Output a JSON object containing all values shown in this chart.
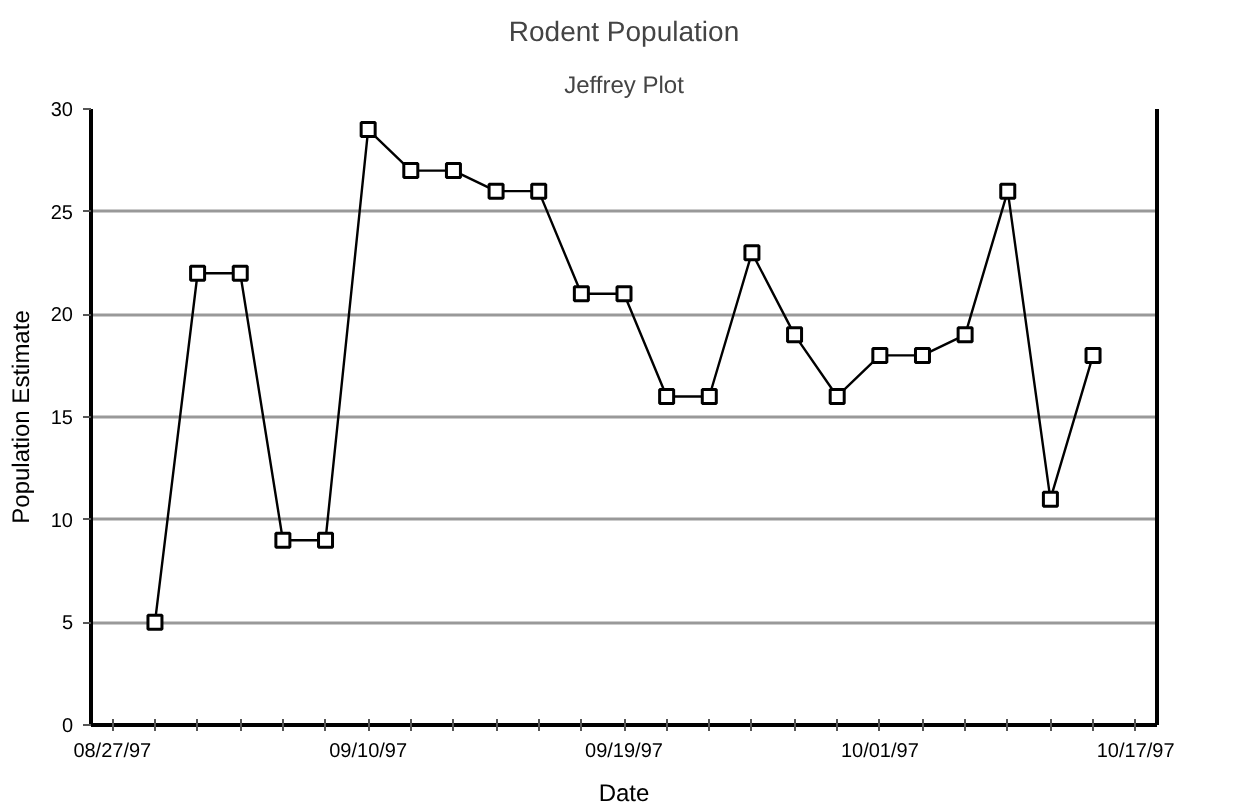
{
  "chart_data": {
    "type": "line",
    "title": "Rodent Population",
    "subtitle": "Jeffrey Plot",
    "xlabel": "Date",
    "ylabel": "Population Estimate",
    "categories": [
      "08/27/97",
      null,
      null,
      null,
      null,
      null,
      "09/10/97",
      null,
      null,
      null,
      null,
      null,
      "09/19/97",
      null,
      null,
      null,
      null,
      null,
      "10/01/97",
      null,
      null,
      null,
      null,
      null,
      "10/17/97"
    ],
    "series": [
      {
        "color": "#000000",
        "values": [
          null,
          5,
          22,
          22,
          9,
          9,
          29,
          27,
          27,
          26,
          26,
          21,
          21,
          16,
          16,
          23,
          19,
          16,
          18,
          18,
          19,
          26,
          11,
          18,
          null
        ]
      }
    ],
    "ylim": [
      0,
      30
    ],
    "yticks": [
      0,
      5,
      10,
      15,
      20,
      25,
      30
    ],
    "grid": "y",
    "marker": "square",
    "line_style": "solid"
  }
}
